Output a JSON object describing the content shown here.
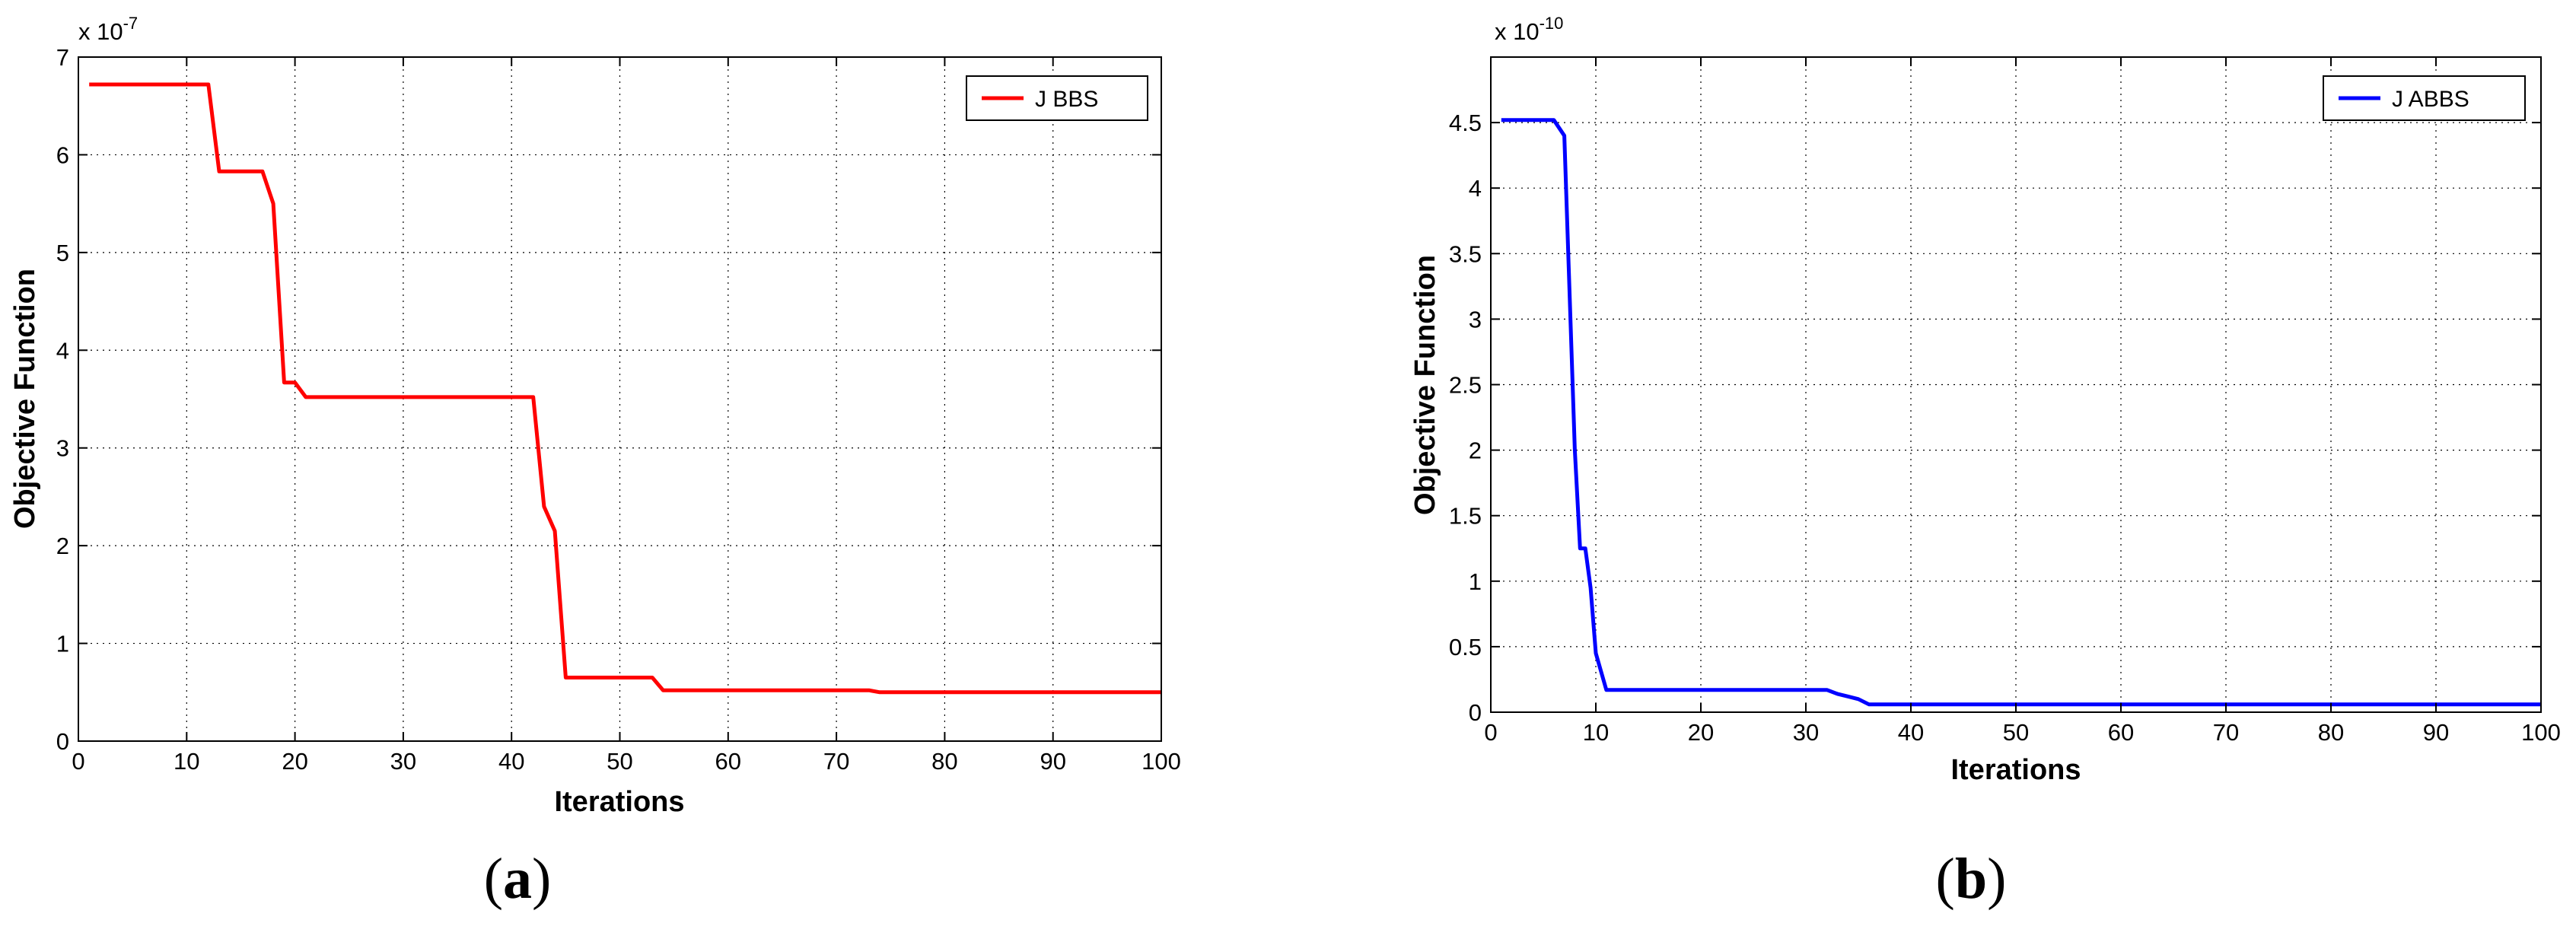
{
  "chart_data": [
    {
      "type": "line",
      "panel_label": "(a)",
      "panel_letter": "a",
      "xlabel": "Iterations",
      "ylabel": "Objective Function",
      "y_exponent_base": "x 10",
      "y_exponent_power": "-7",
      "xlim": [
        0,
        100
      ],
      "ylim": [
        0,
        7
      ],
      "xticks": [
        0,
        10,
        20,
        30,
        40,
        50,
        60,
        70,
        80,
        90,
        100
      ],
      "yticks": [
        0,
        1,
        2,
        3,
        4,
        5,
        6,
        7
      ],
      "ytick_labels": [
        "0",
        "1",
        "2",
        "3",
        "4",
        "5",
        "6",
        "7"
      ],
      "grid": true,
      "legend_position": "top-right",
      "series": [
        {
          "name": "J BBS",
          "color": "#ff0000",
          "x": [
            1,
            12,
            13,
            17,
            18,
            19,
            20,
            21,
            42,
            43,
            44,
            45,
            53,
            54,
            73,
            74,
            100
          ],
          "y": [
            6.72,
            6.72,
            5.83,
            5.83,
            5.5,
            3.67,
            3.67,
            3.52,
            3.52,
            2.4,
            2.15,
            0.65,
            0.65,
            0.52,
            0.52,
            0.5,
            0.5
          ]
        }
      ]
    },
    {
      "type": "line",
      "panel_label": "(b)",
      "panel_letter": "b",
      "xlabel": "Iterations",
      "ylabel": "Objective Function",
      "y_exponent_base": "x 10",
      "y_exponent_power": "-10",
      "xlim": [
        0,
        100
      ],
      "ylim": [
        0,
        5
      ],
      "xticks": [
        0,
        10,
        20,
        30,
        40,
        50,
        60,
        70,
        80,
        90,
        100
      ],
      "yticks": [
        0,
        0.5,
        1,
        1.5,
        2,
        2.5,
        3,
        3.5,
        4,
        4.5
      ],
      "ytick_labels": [
        "0",
        "0.5",
        "1",
        "1.5",
        "2",
        "2.5",
        "3",
        "3.5",
        "4",
        "4.5"
      ],
      "grid": true,
      "legend_position": "top-right",
      "series": [
        {
          "name": "J ABBS",
          "color": "#0000ff",
          "x": [
            1,
            6,
            7,
            8,
            8.5,
            9,
            9.5,
            10,
            11,
            32,
            33,
            34,
            35,
            36,
            100
          ],
          "y": [
            4.52,
            4.52,
            4.4,
            2.0,
            1.25,
            1.25,
            0.95,
            0.45,
            0.17,
            0.17,
            0.14,
            0.12,
            0.1,
            0.06,
            0.06
          ]
        }
      ]
    }
  ]
}
